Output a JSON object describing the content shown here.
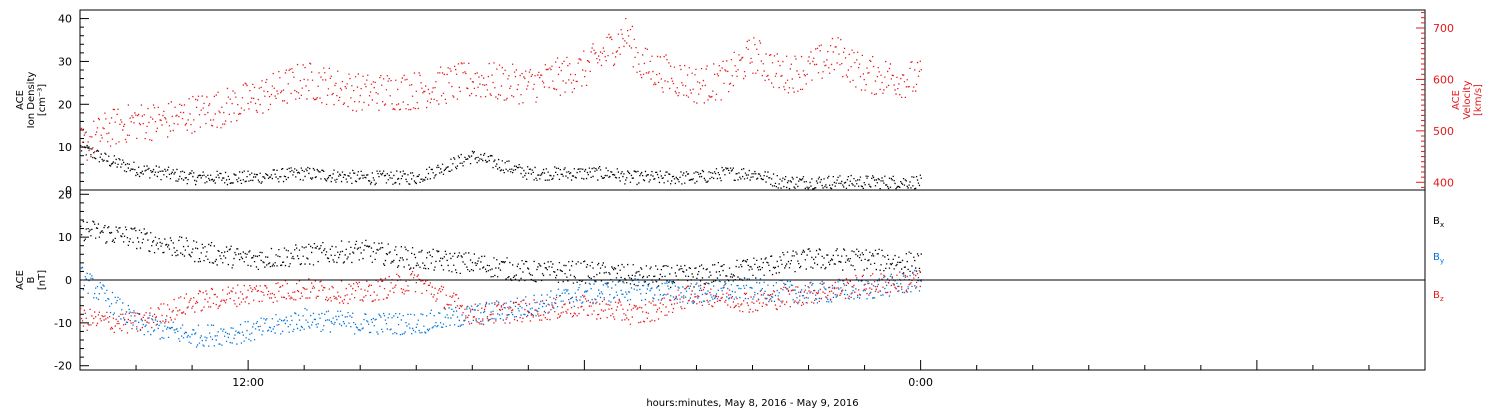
{
  "chart_data": [
    {
      "type": "scatter",
      "panel": "top",
      "xlabel": "hours:minutes, May  8, 2016 - May  9, 2016",
      "x_ticks": [
        "12:00",
        "0:00"
      ],
      "ylabel_left": [
        "ACE",
        "Ion Density",
        "[cm⁻³]"
      ],
      "ylabel_right": [
        "ACE",
        "Velocity",
        "[km/s]"
      ],
      "ylim_left": [
        0,
        42
      ],
      "ylim_right": [
        385,
        735
      ],
      "yticks_left": [
        0,
        10,
        20,
        30,
        40
      ],
      "yticks_right": [
        400,
        500,
        600,
        700
      ],
      "grid": false,
      "series": [
        {
          "axis": "left",
          "color": "#000000",
          "x": [
            0,
            1,
            2,
            3,
            4,
            5,
            6,
            8,
            10,
            12,
            14,
            16,
            18,
            19,
            19.5,
            20,
            21,
            22,
            23,
            24,
            25,
            26,
            27,
            28,
            30
          ],
          "y": [
            10,
            7,
            5,
            4,
            3,
            3,
            3,
            4,
            3,
            3,
            8,
            4,
            4,
            4,
            3,
            3,
            3,
            3,
            4,
            4,
            2,
            2,
            2,
            2,
            2
          ]
        },
        {
          "axis": "right",
          "color": "#e41a1c",
          "x": [
            0,
            1,
            2,
            3,
            4,
            5,
            6,
            8,
            10,
            12,
            14,
            16,
            18,
            19,
            19.5,
            20,
            21,
            22,
            23,
            24,
            25,
            26,
            27,
            28,
            30
          ],
          "y": [
            470,
            505,
            520,
            520,
            535,
            545,
            560,
            600,
            575,
            580,
            600,
            590,
            620,
            665,
            690,
            630,
            610,
            590,
            600,
            650,
            610,
            620,
            650,
            610,
            600
          ]
        }
      ]
    },
    {
      "type": "scatter",
      "panel": "bottom",
      "ylabel": [
        "ACE",
        "B",
        "[nT]"
      ],
      "ylim": [
        -21,
        21
      ],
      "yticks": [
        -20,
        -10,
        0,
        10,
        20
      ],
      "zero_line": true,
      "grid": false,
      "series": [
        {
          "name": "Bx",
          "label": "B",
          "subscript": "x",
          "color": "#000000",
          "x": [
            0,
            2,
            4,
            6,
            8,
            10,
            12,
            14,
            16,
            18,
            20,
            22,
            24,
            26,
            28,
            30
          ],
          "y": [
            12,
            10,
            7,
            5,
            6,
            7,
            5,
            4,
            2,
            2,
            1,
            1,
            3,
            5,
            5,
            4
          ]
        },
        {
          "name": "By",
          "label": "B",
          "subscript": "y",
          "color": "#0074d9",
          "x": [
            0,
            2,
            4,
            6,
            8,
            10,
            12,
            14,
            16,
            18,
            20,
            22,
            24,
            26,
            28,
            30
          ],
          "y": [
            1,
            -10,
            -13,
            -12,
            -9,
            -10,
            -10,
            -8,
            -6,
            -3,
            -2,
            -3,
            -2,
            -3,
            -2,
            0
          ]
        },
        {
          "name": "Bz",
          "label": "B",
          "subscript": "z",
          "color": "#e41a1c",
          "x": [
            0,
            2,
            4,
            6,
            8,
            10,
            12,
            14,
            16,
            18,
            20,
            22,
            24,
            26,
            28,
            30
          ],
          "y": [
            -9,
            -10,
            -5,
            -3,
            -2,
            -3,
            0,
            -8,
            -7,
            -6,
            -8,
            -3,
            -5,
            -3,
            -1,
            0
          ]
        }
      ]
    }
  ]
}
